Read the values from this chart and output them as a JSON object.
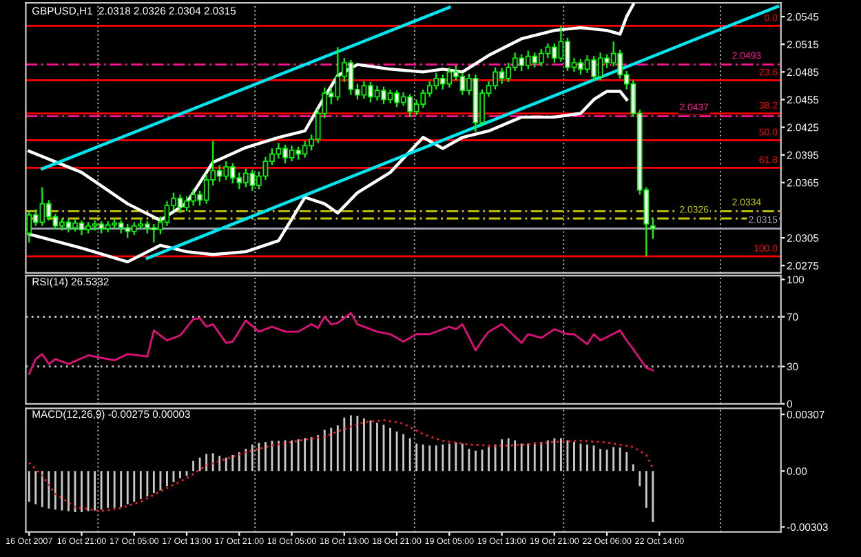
{
  "chart_data": [
    {
      "type": "candlestick",
      "title": "GBPUSD,H1  2.0318 2.0326 2.0304 2.0315",
      "color": "#00ff00",
      "categories": [
        null,
        null,
        null,
        null,
        null,
        null,
        null,
        null,
        null,
        null,
        null,
        null,
        null,
        null,
        null,
        null,
        null,
        null,
        null,
        null,
        null,
        null,
        null,
        null,
        null,
        null,
        null,
        null,
        null,
        null,
        null,
        null,
        null,
        null,
        null,
        null,
        null,
        null,
        null,
        null,
        null,
        null,
        null,
        null,
        null,
        null,
        null,
        null,
        null,
        null,
        null,
        null,
        null,
        null,
        null,
        null,
        null,
        null,
        null,
        null,
        null,
        null,
        null,
        null,
        null,
        null,
        null,
        null,
        null,
        null,
        null,
        null,
        null,
        null,
        null,
        null,
        null,
        null,
        null,
        null,
        null,
        null,
        null,
        null,
        null,
        null,
        null,
        null,
        null,
        null,
        null,
        null,
        null,
        null,
        null,
        null,
        null,
        null,
        null,
        null,
        null,
        null,
        null,
        null,
        null,
        null,
        null,
        null,
        null,
        null,
        null,
        null,
        null,
        null,
        null
      ],
      "ohlc": [
        [
          2.031,
          2.0334,
          2.03,
          2.033
        ],
        [
          2.033,
          2.0336,
          2.0318,
          2.0322
        ],
        [
          2.0322,
          2.036,
          2.0318,
          2.0342
        ],
        [
          2.0342,
          2.0346,
          2.0324,
          2.0328
        ],
        [
          2.0328,
          2.0331,
          2.0314,
          2.0318
        ],
        [
          2.0318,
          2.0326,
          2.0313,
          2.0322
        ],
        [
          2.0322,
          2.0325,
          2.0311,
          2.0316
        ],
        [
          2.0316,
          2.0325,
          2.0312,
          2.0321
        ],
        [
          2.0321,
          2.0324,
          2.0308,
          2.0314
        ],
        [
          2.0314,
          2.0322,
          2.031,
          2.0318
        ],
        [
          2.0318,
          2.0324,
          2.0313,
          2.032
        ],
        [
          2.032,
          2.0323,
          2.031,
          2.0315
        ],
        [
          2.0315,
          2.0323,
          2.0311,
          2.0319
        ],
        [
          2.0319,
          2.0326,
          2.0315,
          2.0321
        ],
        [
          2.0321,
          2.0324,
          2.031,
          2.0316
        ],
        [
          2.0316,
          2.032,
          2.0305,
          2.0312
        ],
        [
          2.0312,
          2.0322,
          2.0308,
          2.0318
        ],
        [
          2.0318,
          2.0325,
          2.0314,
          2.032
        ],
        [
          2.032,
          2.0323,
          2.031,
          2.0316
        ],
        [
          2.0316,
          2.032,
          2.03,
          2.0314
        ],
        [
          2.0314,
          2.0328,
          2.0309,
          2.0322
        ],
        [
          2.0322,
          2.0345,
          2.0318,
          2.034
        ],
        [
          2.034,
          2.0354,
          2.0335,
          2.0348
        ],
        [
          2.0348,
          2.0352,
          2.0332,
          2.0338
        ],
        [
          2.0338,
          2.035,
          2.0334,
          2.0345
        ],
        [
          2.0345,
          2.0358,
          2.034,
          2.0352
        ],
        [
          2.0352,
          2.0356,
          2.034,
          2.0346
        ],
        [
          2.0346,
          2.0374,
          2.0342,
          2.0368
        ],
        [
          2.0368,
          2.041,
          2.0362,
          2.0378
        ],
        [
          2.0378,
          2.0384,
          2.0366,
          2.0372
        ],
        [
          2.0372,
          2.0388,
          2.0368,
          2.0382
        ],
        [
          2.0382,
          2.0386,
          2.0364,
          2.037
        ],
        [
          2.037,
          2.0376,
          2.0358,
          2.0365
        ],
        [
          2.0365,
          2.038,
          2.036,
          2.0375
        ],
        [
          2.0375,
          2.0379,
          2.0356,
          2.0362
        ],
        [
          2.0362,
          2.0377,
          2.0358,
          2.0372
        ],
        [
          2.0372,
          2.0393,
          2.0368,
          2.0388
        ],
        [
          2.0388,
          2.0402,
          2.0384,
          2.0396
        ],
        [
          2.0396,
          2.0408,
          2.0391,
          2.0402
        ],
        [
          2.0402,
          2.0406,
          2.0386,
          2.0392
        ],
        [
          2.0392,
          2.0405,
          2.0388,
          2.04
        ],
        [
          2.04,
          2.0404,
          2.039,
          2.0396
        ],
        [
          2.0396,
          2.041,
          2.0392,
          2.0405
        ],
        [
          2.0405,
          2.0417,
          2.04,
          2.0412
        ],
        [
          2.0412,
          2.0445,
          2.0408,
          2.044
        ],
        [
          2.044,
          2.0468,
          2.0435,
          2.0462
        ],
        [
          2.0462,
          2.0468,
          2.045,
          2.0458
        ],
        [
          2.0458,
          2.0512,
          2.0454,
          2.048
        ],
        [
          2.048,
          2.05,
          2.0474,
          2.0495
        ],
        [
          2.0495,
          2.0498,
          2.046,
          2.0466
        ],
        [
          2.0466,
          2.0472,
          2.0455,
          2.046
        ],
        [
          2.046,
          2.0475,
          2.0456,
          2.047
        ],
        [
          2.047,
          2.0474,
          2.0452,
          2.0458
        ],
        [
          2.0458,
          2.047,
          2.0454,
          2.0465
        ],
        [
          2.0465,
          2.0469,
          2.045,
          2.0455
        ],
        [
          2.0455,
          2.0466,
          2.0451,
          2.0462
        ],
        [
          2.0462,
          2.0465,
          2.0447,
          2.0452
        ],
        [
          2.0452,
          2.0463,
          2.0448,
          2.0458
        ],
        [
          2.0458,
          2.0461,
          2.0436,
          2.0442
        ],
        [
          2.0442,
          2.0455,
          2.0438,
          2.045
        ],
        [
          2.045,
          2.0466,
          2.0446,
          2.0462
        ],
        [
          2.0462,
          2.0475,
          2.0458,
          2.047
        ],
        [
          2.047,
          2.0484,
          2.0466,
          2.0478
        ],
        [
          2.0478,
          2.0482,
          2.0466,
          2.0472
        ],
        [
          2.0472,
          2.049,
          2.0468,
          2.0485
        ],
        [
          2.0485,
          2.0492,
          2.0476,
          2.048
        ],
        [
          2.048,
          2.0484,
          2.046,
          2.0465
        ],
        [
          2.0465,
          2.0483,
          2.046,
          2.0478
        ],
        [
          2.0478,
          2.0482,
          2.042,
          2.043
        ],
        [
          2.043,
          2.0466,
          2.0426,
          2.0462
        ],
        [
          2.0462,
          2.0475,
          2.0458,
          2.047
        ],
        [
          2.047,
          2.049,
          2.0466,
          2.0485
        ],
        [
          2.0485,
          2.0489,
          2.0472,
          2.0478
        ],
        [
          2.0478,
          2.0495,
          2.0474,
          2.049
        ],
        [
          2.049,
          2.0506,
          2.0486,
          2.05
        ],
        [
          2.05,
          2.0504,
          2.0486,
          2.0492
        ],
        [
          2.0492,
          2.0508,
          2.0488,
          2.0502
        ],
        [
          2.0502,
          2.0506,
          2.049,
          2.0495
        ],
        [
          2.0495,
          2.051,
          2.0491,
          2.0505
        ],
        [
          2.0505,
          2.0516,
          2.05,
          2.0512
        ],
        [
          2.0512,
          2.0516,
          2.0495,
          2.05
        ],
        [
          2.05,
          2.0535,
          2.0496,
          2.0518
        ],
        [
          2.0518,
          2.0522,
          2.0486,
          2.049
        ],
        [
          2.049,
          2.05,
          2.0485,
          2.0495
        ],
        [
          2.0495,
          2.0499,
          2.0482,
          2.0488
        ],
        [
          2.0488,
          2.0503,
          2.0484,
          2.0498
        ],
        [
          2.0498,
          2.0502,
          2.0476,
          2.048
        ],
        [
          2.048,
          2.0506,
          2.0476,
          2.05
        ],
        [
          2.05,
          2.0504,
          2.0489,
          2.0495
        ],
        [
          2.0495,
          2.0518,
          2.0491,
          2.0505
        ],
        [
          2.0505,
          2.0509,
          2.0478,
          2.0482
        ],
        [
          2.0482,
          2.0486,
          2.0466,
          2.0472
        ],
        [
          2.0472,
          2.0476,
          2.0436,
          2.044
        ],
        [
          2.044,
          2.0444,
          2.0352,
          2.0357
        ],
        [
          2.0357,
          2.036,
          2.0285,
          2.032
        ],
        [
          2.0318,
          2.0326,
          2.0304,
          2.0315
        ],
        null,
        null,
        null,
        null,
        null,
        null,
        null,
        null,
        null,
        null,
        null,
        null,
        null,
        null,
        null,
        null,
        null,
        null,
        null
      ],
      "series": [
        {
          "type": "line",
          "color": "#ffffff",
          "values": [
            2.0399,
            null,
            null,
            null,
            null,
            null,
            null,
            null,
            2.0376,
            null,
            null,
            null,
            null,
            null,
            null,
            2.0342,
            null,
            null,
            null,
            null,
            2.0324,
            null,
            null,
            null,
            2.0343,
            null,
            null,
            null,
            2.0387,
            null,
            null,
            null,
            null,
            2.0403,
            null,
            null,
            null,
            null,
            2.0414,
            null,
            null,
            null,
            2.0421,
            null,
            null,
            2.0458,
            null,
            2.0481,
            null,
            null,
            2.0493,
            null,
            null,
            null,
            null,
            2.0488,
            null,
            null,
            null,
            null,
            2.0485,
            null,
            null,
            2.0488,
            null,
            null,
            2.0485,
            null,
            null,
            null,
            2.0503,
            null,
            null,
            null,
            null,
            2.0521,
            null,
            null,
            null,
            null,
            2.053,
            null,
            null,
            null,
            2.0533,
            null,
            null,
            null,
            2.053,
            null,
            2.0526,
            2.0545,
            2.0558,
            null,
            null,
            null,
            null,
            null,
            null,
            null,
            null,
            null,
            null,
            null,
            null,
            null,
            null,
            null,
            null,
            null,
            null,
            null,
            null,
            null,
            null
          ]
        },
        {
          "type": "line",
          "color": "#ffffff",
          "values": [
            2.0309,
            null,
            null,
            null,
            null,
            null,
            null,
            null,
            2.0294,
            null,
            null,
            null,
            null,
            null,
            null,
            2.0279,
            null,
            null,
            null,
            null,
            2.0297,
            null,
            null,
            null,
            2.029,
            null,
            null,
            null,
            2.0287,
            null,
            null,
            null,
            null,
            2.029,
            null,
            null,
            null,
            null,
            2.0302,
            null,
            null,
            null,
            2.0349,
            null,
            null,
            2.0342,
            null,
            2.0332,
            null,
            null,
            2.0354,
            null,
            null,
            null,
            null,
            2.0376,
            null,
            null,
            null,
            null,
            2.0414,
            null,
            null,
            2.0402,
            null,
            null,
            2.0414,
            null,
            null,
            null,
            2.0421,
            null,
            null,
            null,
            null,
            2.0436,
            null,
            null,
            null,
            null,
            2.0436,
            null,
            null,
            null,
            2.044,
            null,
            2.0455,
            null,
            2.0464,
            null,
            2.0464,
            2.0455,
            null,
            null,
            null,
            null,
            null,
            null,
            null,
            null,
            null,
            null,
            null,
            null,
            null,
            null,
            null,
            null,
            null,
            null,
            null,
            null,
            null,
            null,
            null
          ]
        },
        {
          "type": "line",
          "color": "#00e5ee",
          "values": [
            null,
            null,
            2.038,
            null,
            null,
            null,
            null,
            null,
            null,
            null,
            null,
            null,
            null,
            null,
            null,
            null,
            null,
            null,
            null,
            null,
            null,
            null,
            null,
            null,
            null,
            null,
            null,
            null,
            null,
            null,
            null,
            null,
            null,
            null,
            null,
            null,
            null,
            null,
            null,
            null,
            null,
            null,
            null,
            null,
            null,
            null,
            null,
            null,
            null,
            null,
            null,
            null,
            null,
            null,
            null,
            null,
            null,
            null,
            null,
            null,
            null,
            null,
            null,
            null,
            2.0555,
            null,
            null,
            null,
            null,
            null,
            null,
            null,
            null,
            null,
            null,
            null,
            null,
            null,
            null,
            null,
            null,
            null,
            null,
            null,
            null,
            null,
            null,
            null,
            null,
            null,
            null,
            null,
            null,
            null,
            null,
            null,
            null,
            null,
            null,
            null,
            null,
            null,
            null,
            null,
            null,
            null,
            null,
            null,
            null,
            null,
            null,
            null,
            null,
            null,
            null
          ]
        },
        {
          "type": "line",
          "color": "#00e5ee",
          "values": [
            null,
            null,
            null,
            null,
            null,
            null,
            null,
            null,
            null,
            null,
            null,
            null,
            null,
            null,
            null,
            null,
            null,
            null,
            2.0283,
            null,
            null,
            null,
            null,
            null,
            null,
            null,
            null,
            null,
            null,
            null,
            null,
            null,
            null,
            null,
            null,
            null,
            null,
            null,
            null,
            null,
            null,
            null,
            null,
            null,
            null,
            null,
            null,
            null,
            null,
            null,
            null,
            null,
            null,
            null,
            null,
            null,
            null,
            null,
            null,
            null,
            null,
            null,
            null,
            null,
            null,
            null,
            null,
            null,
            null,
            null,
            null,
            null,
            null,
            null,
            null,
            null,
            null,
            null,
            null,
            null,
            null,
            null,
            null,
            null,
            null,
            null,
            null,
            null,
            null,
            null,
            null,
            null,
            null,
            null,
            null,
            null,
            null,
            null,
            null,
            null,
            null,
            null,
            null,
            null,
            null,
            null,
            null,
            null,
            null,
            null,
            null,
            null,
            null,
            null,
            2.0556
          ]
        }
      ],
      "ref_lines": [
        {
          "axis": "y",
          "value": 2.0535,
          "color": "#ff0000",
          "line_style": "solid"
        },
        {
          "axis": "y",
          "value": 2.0476,
          "color": "#ff0000",
          "line_style": "solid"
        },
        {
          "axis": "y",
          "value": 2.044,
          "color": "#ff0000",
          "line_style": "solid"
        },
        {
          "axis": "y",
          "value": 2.0411,
          "color": "#ff0000",
          "line_style": "solid"
        },
        {
          "axis": "y",
          "value": 2.0381,
          "color": "#ff0000",
          "line_style": "solid"
        },
        {
          "axis": "y",
          "value": 2.0285,
          "color": "#ff0000",
          "line_style": "solid"
        },
        {
          "axis": "y",
          "value": 2.0493,
          "label": "2.0493",
          "color": "#ff1493",
          "line_style": "dashed"
        },
        {
          "axis": "y",
          "value": 2.0437,
          "label": "2.0437",
          "color": "#ff1493",
          "line_style": "dashed"
        },
        {
          "axis": "y",
          "value": 2.0334,
          "label": "2.0334",
          "color": "#c8c800",
          "line_style": "dashed"
        },
        {
          "axis": "y",
          "value": 2.0326,
          "label": "2.0326",
          "color": "#c8c800",
          "line_style": "dashed"
        },
        {
          "axis": "y",
          "value": 2.0315,
          "label": "2.0315",
          "color": "#a0a8b8",
          "line_style": "solid"
        }
      ],
      "annotations": [
        {
          "text": "0.0",
          "y": 2.0535
        },
        {
          "text": "23.6",
          "y": 2.0476
        },
        {
          "text": "38.2",
          "y": 2.044
        },
        {
          "text": "50.0",
          "y": 2.0411
        },
        {
          "text": "61.8",
          "y": 2.0381
        },
        {
          "text": "100.0",
          "y": 2.0285
        }
      ],
      "ylim": [
        2.0267,
        2.056
      ],
      "yticks": [
        2.0545,
        2.0515,
        2.0485,
        2.0455,
        2.0425,
        2.0395,
        2.0365,
        2.0305,
        2.0275
      ],
      "tick_labels": "y"
    },
    {
      "type": "line",
      "title": "RSI(14) 26.5332",
      "categories": [
        null,
        null,
        null,
        null,
        null,
        null,
        null,
        null,
        null,
        null,
        null,
        null,
        null,
        null,
        null,
        null,
        null,
        null,
        null,
        null,
        null,
        null,
        null,
        null,
        null,
        null,
        null,
        null,
        null,
        null,
        null,
        null,
        null,
        null,
        null,
        null,
        null,
        null,
        null,
        null,
        null,
        null,
        null,
        null,
        null,
        null,
        null,
        null,
        null,
        null,
        null,
        null,
        null,
        null,
        null,
        null,
        null,
        null,
        null,
        null,
        null,
        null,
        null,
        null,
        null,
        null,
        null,
        null,
        null,
        null,
        null,
        null,
        null,
        null,
        null,
        null,
        null,
        null,
        null,
        null,
        null,
        null,
        null,
        null,
        null,
        null,
        null,
        null,
        null,
        null,
        null,
        null,
        null,
        null,
        null,
        null,
        null,
        null,
        null,
        null,
        null,
        null,
        null,
        null,
        null,
        null,
        null,
        null,
        null,
        null,
        null,
        null,
        null,
        null,
        null
      ],
      "series": [
        {
          "color": "#e0107a",
          "values": [
            24,
            36,
            40,
            32,
            36,
            null,
            32,
            null,
            null,
            39,
            null,
            37,
            null,
            35,
            null,
            40,
            null,
            null,
            38,
            59,
            null,
            51,
            null,
            55,
            null,
            68,
            69,
            62,
            64,
            null,
            49,
            50,
            null,
            67,
            null,
            58,
            null,
            62,
            null,
            58,
            null,
            58,
            null,
            64,
            61,
            70,
            64,
            65,
            null,
            73,
            64,
            null,
            null,
            58,
            null,
            56,
            null,
            50,
            null,
            56,
            null,
            56,
            null,
            null,
            62,
            60,
            64,
            null,
            43,
            51,
            58,
            null,
            64,
            null,
            null,
            49,
            56,
            null,
            53,
            null,
            60,
            null,
            56,
            56,
            null,
            48,
            56,
            51,
            null,
            null,
            59,
            51,
            44,
            null,
            29,
            27,
            null,
            null,
            null,
            null,
            null,
            null,
            null,
            null,
            null,
            null,
            null,
            null,
            null,
            null,
            null,
            null,
            null,
            null,
            null
          ]
        }
      ],
      "ref_lines": [
        {
          "axis": "y",
          "value": 70,
          "color": "#c0c0c0",
          "line_style": "dotted"
        },
        {
          "axis": "y",
          "value": 30,
          "color": "#c0c0c0",
          "line_style": "dotted"
        }
      ],
      "ylim": [
        0,
        103
      ],
      "yticks": [
        100,
        70,
        30,
        0
      ],
      "tick_labels": "y"
    },
    {
      "type": "bar",
      "title": "MACD(12,26,9) -0.00275 0.00003",
      "categories": [
        "16 Oct 2007",
        null,
        null,
        null,
        null,
        null,
        null,
        null,
        "16 Oct 21:00",
        null,
        null,
        null,
        null,
        null,
        null,
        null,
        "17 Oct 05:00",
        null,
        null,
        null,
        null,
        null,
        null,
        null,
        "17 Oct 13:00",
        null,
        null,
        null,
        null,
        null,
        null,
        null,
        "17 Oct 21:00",
        null,
        null,
        null,
        null,
        null,
        null,
        null,
        "18 Oct 05:00",
        null,
        null,
        null,
        null,
        null,
        null,
        null,
        "18 Oct 13:00",
        null,
        null,
        null,
        null,
        null,
        null,
        null,
        "18 Oct 21:00",
        null,
        null,
        null,
        null,
        null,
        null,
        null,
        "19 Oct 05:00",
        null,
        null,
        null,
        null,
        null,
        null,
        null,
        "19 Oct 13:00",
        null,
        null,
        null,
        null,
        null,
        null,
        null,
        "19 Oct 21:00",
        null,
        null,
        null,
        null,
        null,
        null,
        null,
        "22 Oct 06:00",
        null,
        null,
        null,
        null,
        null,
        null,
        null,
        "22 Oct 14:00",
        null,
        null,
        null,
        null,
        null,
        null,
        null,
        null,
        null,
        null,
        null,
        null,
        null,
        null,
        null,
        null,
        null,
        null
      ],
      "series": [
        {
          "type": "bar",
          "color": "#c8c8c8",
          "values": [
            -0.00166,
            -0.0018,
            -0.00195,
            -0.00203,
            -0.00209,
            -0.00214,
            -0.00217,
            -0.00223,
            -0.00223,
            -0.00217,
            -0.00214,
            -0.00209,
            -0.002,
            -0.002,
            -0.00195,
            -0.0018,
            -0.00166,
            -0.00152,
            -0.00138,
            -0.00118,
            -0.00104,
            -0.00082,
            -0.00059,
            -0.00039,
            -0.00025,
            0.00054,
            0.00073,
            0.00093,
            0.00096,
            0.00082,
            0.00073,
            0.00087,
            0.00102,
            0.00121,
            0.00144,
            0.00152,
            0.00158,
            0.00164,
            0.00164,
            0.00166,
            0.00166,
            0.00172,
            0.00178,
            0.00183,
            0.00195,
            0.00223,
            0.00234,
            0.00248,
            0.0029,
            0.00302,
            0.00299,
            0.00285,
            0.00274,
            0.00262,
            0.00251,
            0.00234,
            0.00214,
            0.002,
            0.00178,
            0.00149,
            0.00144,
            0.00138,
            0.00138,
            0.00144,
            0.00149,
            0.00155,
            0.00149,
            0.00121,
            0.0011,
            0.00116,
            0.0013,
            0.00144,
            0.00172,
            0.00178,
            0.00166,
            0.00149,
            0.00149,
            0.00155,
            0.00158,
            0.00166,
            0.00178,
            0.00178,
            0.00166,
            0.00158,
            0.00149,
            0.00144,
            0.00138,
            0.00121,
            0.00116,
            0.0013,
            0.00127,
            0.00102,
            0.00037,
            -0.00082,
            -0.002,
            -0.00275,
            null,
            null,
            null,
            null,
            null,
            null,
            null,
            null,
            null,
            null,
            null,
            null,
            null,
            null,
            null,
            null,
            null,
            null,
            null
          ]
        },
        {
          "type": "line",
          "color": "#ff2020",
          "line_style": "dotted",
          "values": [
            0.00045,
            null,
            -0.00025,
            null,
            -0.00124,
            null,
            null,
            -0.00195,
            null,
            null,
            null,
            -0.00217,
            null,
            null,
            -0.002,
            null,
            null,
            -0.00166,
            null,
            null,
            -0.0011,
            null,
            null,
            null,
            -0.00039,
            null,
            null,
            0.00031,
            null,
            null,
            0.00065,
            null,
            null,
            0.00102,
            null,
            null,
            null,
            0.00138,
            null,
            null,
            null,
            0.00164,
            null,
            null,
            null,
            0.00186,
            null,
            null,
            0.00228,
            null,
            null,
            0.00265,
            null,
            null,
            0.00276,
            null,
            null,
            0.00257,
            null,
            null,
            0.002,
            null,
            null,
            0.00164,
            null,
            null,
            null,
            0.00144,
            null,
            null,
            null,
            0.00135,
            null,
            null,
            null,
            null,
            0.00144,
            null,
            null,
            null,
            0.00158,
            null,
            null,
            null,
            0.00164,
            null,
            null,
            null,
            0.00155,
            null,
            null,
            null,
            0.0013,
            null,
            0.00087,
            0.00017,
            null,
            null,
            null,
            null,
            null,
            null,
            null,
            null,
            null,
            null,
            null,
            null,
            null,
            null,
            null,
            null,
            null,
            null,
            null
          ]
        }
      ],
      "ylim": [
        -0.0033,
        0.0034
      ],
      "yticks": [
        0.00307,
        {
          "value": 0,
          "label": "0.00"
        },
        {
          "value": -0.00303,
          "label": "-0.00303"
        }
      ]
    }
  ]
}
